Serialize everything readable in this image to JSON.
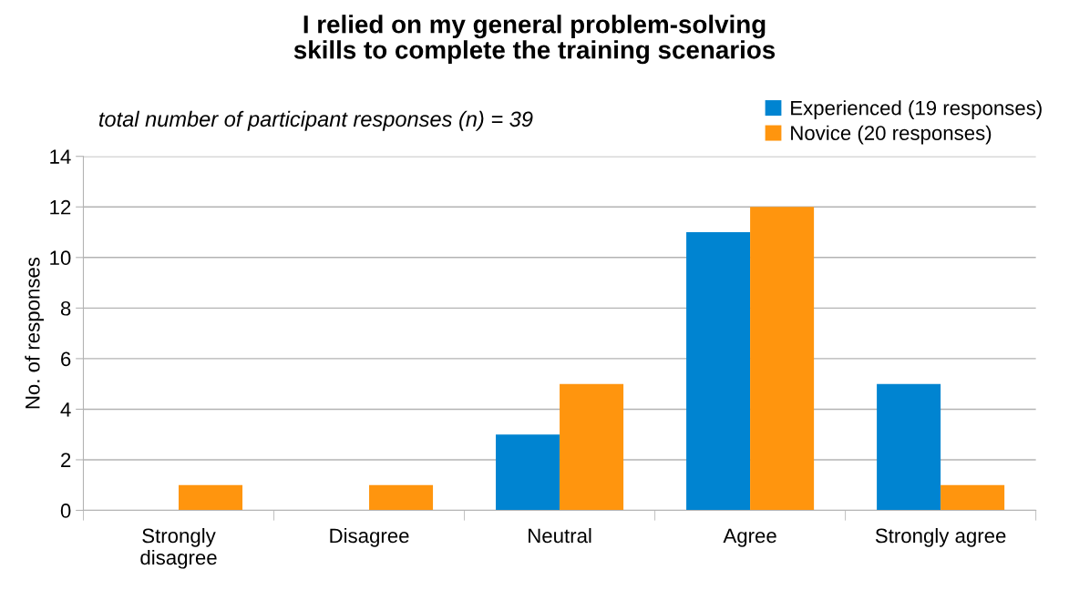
{
  "chart_data": {
    "type": "bar",
    "title": "I relied on my general problem-solving skills to complete the training scenarios",
    "ylabel": "No. of responses",
    "annotations": [
      "total number of participant responses (n) = 39"
    ],
    "categories": [
      "Strongly disagree",
      "Disagree",
      "Neutral",
      "Agree",
      "Strongly agree"
    ],
    "series": [
      {
        "name": "Experienced (19 responses)",
        "color": "#0084d1",
        "values": [
          0,
          0,
          3,
          11,
          5
        ]
      },
      {
        "name": "Novice (20 responses)",
        "color": "#ff950e",
        "values": [
          1,
          1,
          5,
          12,
          1
        ]
      }
    ],
    "ylim": [
      0,
      14
    ],
    "yticks": [
      0,
      2,
      4,
      6,
      8,
      10,
      12,
      14
    ],
    "grid": "y",
    "legend": "top right"
  }
}
